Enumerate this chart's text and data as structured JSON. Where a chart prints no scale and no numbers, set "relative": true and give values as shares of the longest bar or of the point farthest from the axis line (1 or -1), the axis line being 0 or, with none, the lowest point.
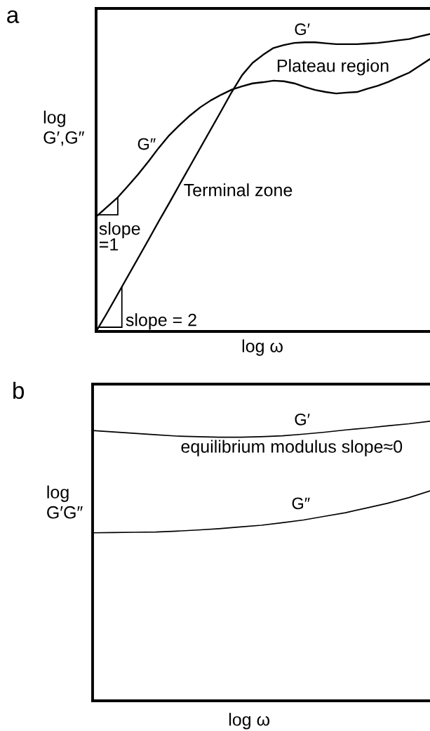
{
  "chart_data": [
    {
      "type": "line",
      "title": "a",
      "xlabel": "log ω",
      "ylabel": "log\nG′,G″",
      "relative": true,
      "categories": [
        null,
        null,
        null,
        null,
        null,
        null,
        null,
        null,
        null,
        null,
        null,
        null,
        null,
        null,
        null,
        null,
        null,
        null,
        null,
        null,
        null,
        null,
        null,
        null,
        null,
        null,
        null,
        null,
        null,
        null,
        null,
        null,
        null
      ],
      "series": [
        {
          "name": "G′",
          "color": "#000000",
          "values": [
            0,
            0.059,
            0.121,
            0.183,
            0.245,
            0.307,
            0.37,
            0.431,
            0.494,
            0.556,
            0.618,
            0.68,
            0.742,
            0.805,
            0.862,
            0.903,
            0.93,
            0.953,
            0.963,
            0.97,
            0.972,
            0.972,
            0.969,
            0.966,
            0.966,
            0.966,
            0.968,
            0.97,
            0.974,
            0.979,
            0.983,
            0.992,
            1
          ]
        },
        {
          "name": "G″",
          "color": "#000000",
          "values": [
            0.386,
            0.417,
            0.448,
            0.487,
            0.527,
            0.571,
            0.617,
            0.659,
            0.694,
            0.726,
            0.754,
            0.777,
            0.796,
            0.813,
            0.824,
            0.834,
            0.838,
            0.843,
            0.841,
            0.834,
            0.822,
            0.812,
            0.805,
            0.8,
            0.803,
            0.805,
            0.816,
            0.826,
            0.839,
            0.855,
            0.87,
            0.893,
            0.916
          ]
        }
      ],
      "annotations": [
        "Plateau region",
        "Terminal zone",
        "slope\n=1",
        "slope = 2"
      ]
    },
    {
      "type": "line",
      "title": "b",
      "xlabel": "log ω",
      "ylabel": "log\nG′G″",
      "relative": true,
      "categories": [
        null,
        null,
        null,
        null,
        null,
        null,
        null,
        null,
        null,
        null,
        null,
        null,
        null,
        null,
        null,
        null,
        null
      ],
      "series": [
        {
          "name": "G′",
          "color": "#000000",
          "values": [
            0.967,
            0.962,
            0.957,
            0.952,
            0.947,
            0.945,
            0.943,
            0.943,
            0.945,
            0.948,
            0.954,
            0.961,
            0.969,
            0.976,
            0.984,
            0.991,
            1
          ]
        },
        {
          "name": "G″",
          "color": "#000000",
          "values": [
            0.601,
            0.602,
            0.603,
            0.604,
            0.607,
            0.611,
            0.616,
            0.622,
            0.628,
            0.637,
            0.647,
            0.66,
            0.673,
            0.69,
            0.707,
            0.727,
            0.751
          ]
        }
      ],
      "annotations": [
        "equilibrium modulus slope≈0"
      ]
    }
  ]
}
